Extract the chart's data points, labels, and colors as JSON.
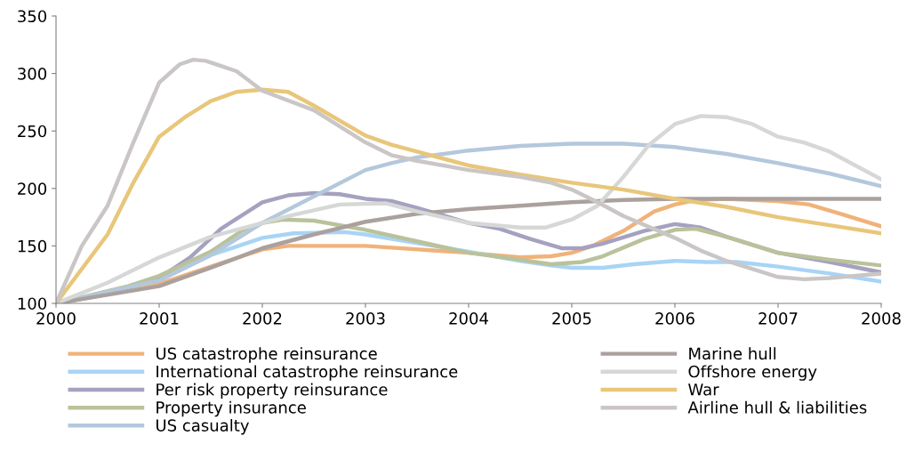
{
  "chart_data": {
    "type": "line",
    "xlim": [
      2000,
      2008
    ],
    "xticks": [
      2000,
      2001,
      2002,
      2003,
      2004,
      2005,
      2006,
      2007,
      2008
    ],
    "ylim": [
      100,
      350
    ],
    "yticks": [
      100,
      150,
      200,
      250,
      300,
      350
    ],
    "grid": false,
    "legend": "bottom",
    "marker": "none",
    "line_style": "solid",
    "series": [
      {
        "name": "US catastrophe reinsurance",
        "color": "#f0b27a",
        "x": [
          2000,
          2001,
          2002,
          2002.25,
          2003,
          2004,
          2004.5,
          2004.8,
          2005,
          2005.2,
          2005.5,
          2005.8,
          2006,
          2006.2,
          2006.5,
          2007,
          2007.3,
          2007.6,
          2008
        ],
        "values": [
          100,
          117,
          147,
          150,
          150,
          144,
          140,
          141,
          144,
          150,
          163,
          180,
          186,
          190,
          191,
          189,
          186,
          178,
          167
        ]
      },
      {
        "name": "International catastrophe reinsurance",
        "color": "#a8d4f5",
        "x": [
          2000,
          2001,
          2001.5,
          2002,
          2002.3,
          2002.8,
          2003,
          2004,
          2004.5,
          2004.8,
          2005,
          2005.3,
          2005.6,
          2006,
          2006.3,
          2006.6,
          2007,
          2007.5,
          2008
        ],
        "values": [
          100,
          120,
          142,
          157,
          161,
          162,
          160,
          145,
          137,
          133,
          131,
          131,
          134,
          137,
          136,
          136,
          132,
          126,
          119
        ]
      },
      {
        "name": "Per risk property reinsurance",
        "color": "#a5a1c0",
        "x": [
          2000,
          2000.5,
          2001,
          2001.3,
          2001.6,
          2002,
          2002.25,
          2002.5,
          2002.75,
          2003,
          2003.25,
          2003.5,
          2004,
          2004.3,
          2004.6,
          2004.9,
          2005.1,
          2005.3,
          2005.7,
          2006,
          2006.25,
          2006.5,
          2007,
          2007.5,
          2008
        ],
        "values": [
          100,
          108,
          122,
          140,
          165,
          188,
          194,
          196,
          195,
          191,
          189,
          183,
          170,
          165,
          156,
          148,
          148,
          152,
          163,
          169,
          166,
          158,
          144,
          136,
          127
        ]
      },
      {
        "name": "Property insurance",
        "color": "#b9c29a",
        "x": [
          2000,
          2000.7,
          2001,
          2001.5,
          2001.8,
          2002,
          2002.2,
          2002.5,
          2003,
          2003.5,
          2004,
          2004.5,
          2004.8,
          2005.1,
          2005.3,
          2005.7,
          2006,
          2006.2,
          2006.5,
          2007,
          2007.5,
          2008
        ],
        "values": [
          100,
          115,
          124,
          145,
          163,
          170,
          173,
          172,
          164,
          154,
          144,
          138,
          134,
          136,
          141,
          156,
          164,
          165,
          158,
          144,
          138,
          133
        ]
      },
      {
        "name": "US casualty",
        "color": "#b4c8dc",
        "x": [
          2000,
          2001,
          2001.5,
          2002,
          2002.5,
          2003,
          2003.25,
          2003.5,
          2004,
          2004.5,
          2005,
          2005.5,
          2006,
          2006.5,
          2007,
          2007.5,
          2008
        ],
        "values": [
          100,
          120,
          142,
          170,
          193,
          216,
          222,
          227,
          233,
          237,
          239,
          239,
          236,
          230,
          222,
          213,
          202
        ]
      },
      {
        "name": "Marine hull",
        "color": "#aaa19e",
        "x": [
          2000,
          2001,
          2001.5,
          2002,
          2002.5,
          2003,
          2003.5,
          2004,
          2004.5,
          2005,
          2005.5,
          2006,
          2008
        ],
        "values": [
          100,
          115,
          131,
          148,
          160,
          171,
          178,
          182,
          185,
          188,
          190,
          191,
          191
        ]
      },
      {
        "name": "Offshore energy",
        "color": "#d5d8d6",
        "x": [
          2000,
          2000.5,
          2001,
          2001.5,
          2002,
          2002.25,
          2002.75,
          2003.2,
          2003.5,
          2004,
          2004.5,
          2004.75,
          2005,
          2005.25,
          2005.5,
          2005.75,
          2006,
          2006.25,
          2006.5,
          2006.75,
          2007,
          2007.25,
          2007.5,
          2008
        ],
        "values": [
          100,
          118,
          140,
          158,
          170,
          176,
          186,
          187,
          180,
          170,
          166,
          166,
          173,
          185,
          210,
          238,
          256,
          263,
          262,
          256,
          245,
          240,
          232,
          208
        ]
      },
      {
        "name": "War",
        "color": "#e8c67a",
        "x": [
          2000,
          2000.25,
          2000.5,
          2000.75,
          2001,
          2001.25,
          2001.5,
          2001.75,
          2002,
          2002.25,
          2002.5,
          2003,
          2003.25,
          2003.5,
          2004,
          2004.5,
          2005,
          2005.5,
          2006,
          2006.5,
          2007,
          2007.5,
          2008
        ],
        "values": [
          100,
          130,
          160,
          205,
          245,
          262,
          276,
          284,
          286,
          284,
          272,
          246,
          238,
          232,
          220,
          212,
          205,
          199,
          191,
          184,
          175,
          168,
          161
        ]
      },
      {
        "name": "Airline hull & liabilities",
        "color": "#cbc6c6",
        "x": [
          2000,
          2000.25,
          2000.5,
          2000.75,
          2001,
          2001.2,
          2001.33,
          2001.45,
          2001.75,
          2002,
          2002.5,
          2003,
          2003.25,
          2003.5,
          2004,
          2004.5,
          2004.8,
          2005,
          2005.25,
          2005.5,
          2006,
          2006.25,
          2006.5,
          2007,
          2007.25,
          2007.5,
          2008
        ],
        "values": [
          100,
          150,
          185,
          240,
          292,
          308,
          312,
          311,
          302,
          285,
          268,
          240,
          229,
          224,
          216,
          210,
          205,
          199,
          188,
          176,
          157,
          146,
          137,
          123,
          121,
          122,
          126
        ]
      }
    ]
  }
}
